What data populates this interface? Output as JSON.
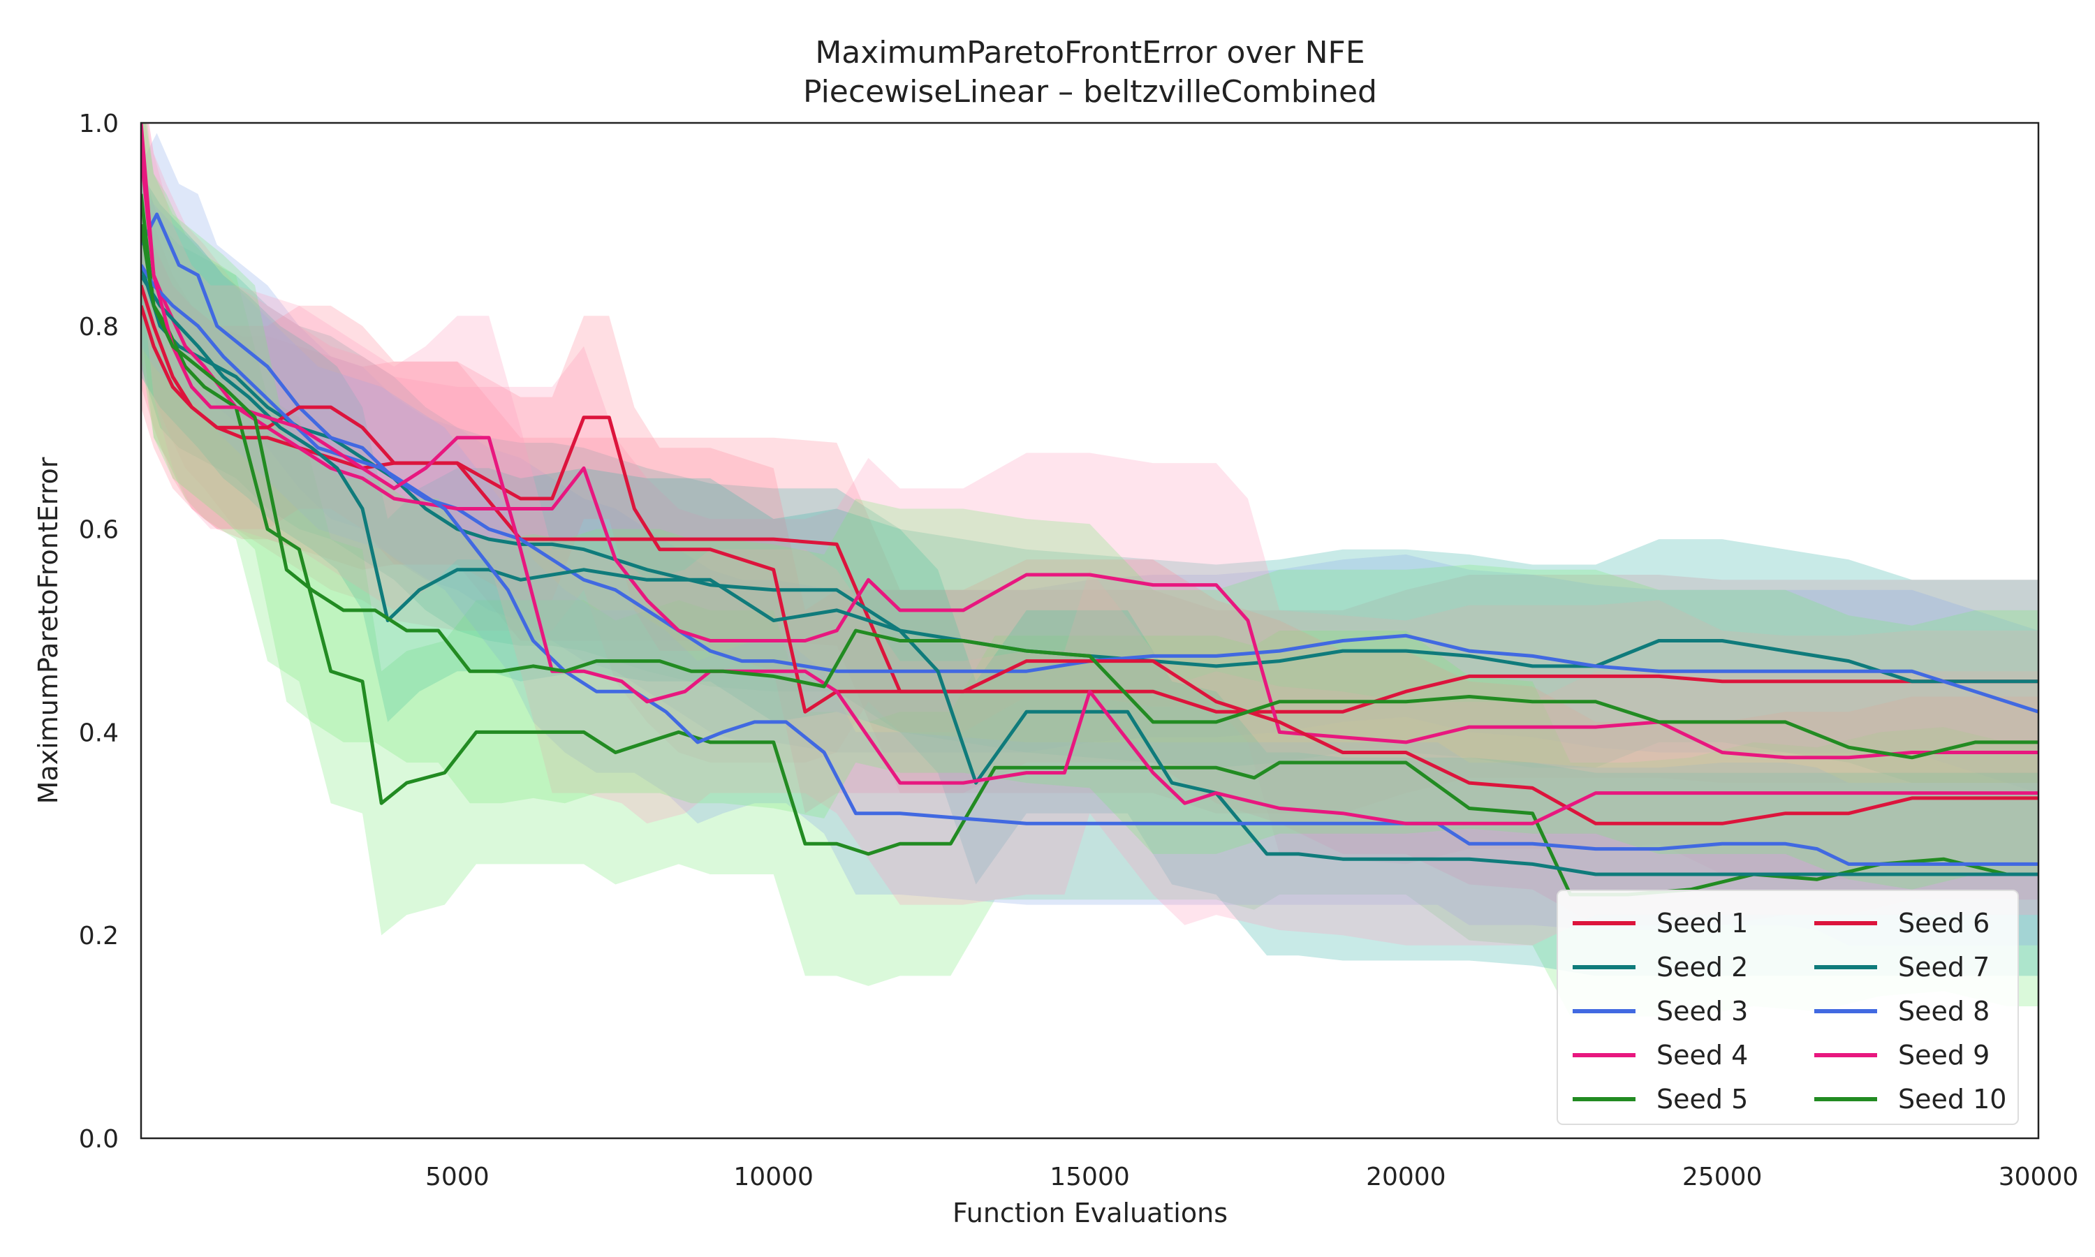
{
  "chart_data": {
    "type": "line",
    "title": "MaximumParetoFrontError over NFE",
    "subtitle": "PiecewiseLinear – beltzvilleCombined",
    "xlabel": "Function Evaluations",
    "ylabel": "MaximumParetoFrontError",
    "xlim": [
      0,
      30000
    ],
    "ylim": [
      0,
      1.0
    ],
    "xticks": [
      5000,
      10000,
      15000,
      20000,
      25000,
      30000
    ],
    "xtick_labels": [
      "5000",
      "10000",
      "15000",
      "20000",
      "25000",
      "30000"
    ],
    "yticks": [
      0.0,
      0.2,
      0.4,
      0.6,
      0.8,
      1.0
    ],
    "ytick_labels": [
      "0.0",
      "0.2",
      "0.4",
      "0.6",
      "0.8",
      "1.0"
    ],
    "grid": false,
    "legend_position": "lower-right",
    "legend_columns": 2,
    "series": [
      {
        "name": "Seed 1",
        "color": "#DC143C",
        "x": [
          0,
          200,
          500,
          800,
          1200,
          1600,
          2000,
          2500,
          3000,
          3500,
          4000,
          5000,
          6000,
          7000,
          8000,
          9000,
          10000,
          11000,
          12000,
          13000,
          14000,
          15000,
          16000,
          17000,
          18000,
          19000,
          20000,
          21000,
          22000,
          23000,
          24000,
          25000,
          26000,
          27000,
          28000,
          29000,
          30000
        ],
        "y": [
          0.84,
          0.8,
          0.75,
          0.72,
          0.7,
          0.69,
          0.69,
          0.68,
          0.67,
          0.66,
          0.665,
          0.665,
          0.59,
          0.59,
          0.59,
          0.59,
          0.59,
          0.585,
          0.44,
          0.44,
          0.44,
          0.44,
          0.44,
          0.42,
          0.42,
          0.42,
          0.44,
          0.455,
          0.455,
          0.455,
          0.455,
          0.45,
          0.45,
          0.45,
          0.45,
          0.45,
          0.45
        ]
      },
      {
        "name": "Seed 2",
        "color": "#0F7B7B",
        "x": [
          0,
          300,
          600,
          900,
          1200,
          1500,
          2000,
          2500,
          3000,
          3500,
          4000,
          4500,
          5000,
          5500,
          6000,
          6500,
          7000,
          7500,
          8000,
          9000,
          10000,
          11000,
          12000,
          13000,
          14000,
          15000,
          16000,
          17000,
          18000,
          19000,
          20000,
          21000,
          22000,
          23000,
          24000,
          25000,
          26000,
          27000,
          28000,
          29000,
          30000
        ],
        "y": [
          0.86,
          0.8,
          0.78,
          0.77,
          0.76,
          0.75,
          0.72,
          0.7,
          0.69,
          0.67,
          0.65,
          0.62,
          0.6,
          0.59,
          0.585,
          0.585,
          0.58,
          0.57,
          0.56,
          0.545,
          0.54,
          0.54,
          0.5,
          0.49,
          0.48,
          0.475,
          0.47,
          0.465,
          0.47,
          0.48,
          0.48,
          0.475,
          0.465,
          0.465,
          0.49,
          0.49,
          0.48,
          0.47,
          0.45,
          0.45,
          0.45
        ]
      },
      {
        "name": "Seed 3",
        "color": "#4169E1",
        "x": [
          0,
          250,
          600,
          900,
          1200,
          1600,
          2000,
          2500,
          3000,
          3500,
          4000,
          4500,
          5000,
          5500,
          6000,
          6500,
          7000,
          7500,
          8000,
          8500,
          9000,
          9500,
          10000,
          11000,
          12000,
          13000,
          14000,
          15000,
          16000,
          17000,
          18000,
          19000,
          20000,
          21000,
          22000,
          23000,
          24000,
          25000,
          26000,
          27000,
          28000,
          29000,
          30000
        ],
        "y": [
          0.88,
          0.91,
          0.86,
          0.85,
          0.8,
          0.78,
          0.76,
          0.72,
          0.69,
          0.68,
          0.65,
          0.63,
          0.62,
          0.6,
          0.59,
          0.57,
          0.55,
          0.54,
          0.52,
          0.5,
          0.48,
          0.47,
          0.47,
          0.46,
          0.46,
          0.46,
          0.46,
          0.47,
          0.475,
          0.475,
          0.48,
          0.49,
          0.495,
          0.48,
          0.475,
          0.465,
          0.46,
          0.46,
          0.46,
          0.46,
          0.46,
          0.44,
          0.42
        ]
      },
      {
        "name": "Seed 4",
        "color": "#E8177F",
        "x": [
          0,
          200,
          400,
          700,
          1000,
          1500,
          2000,
          2500,
          3000,
          3500,
          4000,
          4500,
          5000,
          5500,
          6000,
          6500,
          7000,
          7500,
          8000,
          8500,
          9000,
          9500,
          10000,
          10500,
          11000,
          11500,
          12000,
          13000,
          14000,
          15000,
          16000,
          17000,
          17500,
          18000,
          19000,
          20000,
          21000,
          22000,
          23000,
          24000,
          25000,
          26000,
          27000,
          28000,
          29000,
          30000
        ],
        "y": [
          1.0,
          0.85,
          0.82,
          0.78,
          0.76,
          0.72,
          0.7,
          0.68,
          0.66,
          0.65,
          0.63,
          0.625,
          0.62,
          0.62,
          0.62,
          0.62,
          0.66,
          0.57,
          0.53,
          0.5,
          0.49,
          0.49,
          0.49,
          0.49,
          0.5,
          0.55,
          0.52,
          0.52,
          0.555,
          0.555,
          0.545,
          0.545,
          0.51,
          0.4,
          0.395,
          0.39,
          0.405,
          0.405,
          0.405,
          0.41,
          0.38,
          0.375,
          0.375,
          0.38,
          0.38,
          0.38
        ]
      },
      {
        "name": "Seed 5",
        "color": "#228B22",
        "x": [
          0,
          200,
          400,
          700,
          1000,
          1500,
          2000,
          2500,
          3000,
          3500,
          3800,
          4200,
          4800,
          5300,
          6000,
          6500,
          7000,
          7500,
          8000,
          8500,
          9000,
          9500,
          10000,
          10500,
          11000,
          11500,
          12000,
          12800,
          13500,
          14500,
          15500,
          16000,
          17000,
          17600,
          18000,
          19000,
          20000,
          21000,
          22000,
          22600,
          23500,
          24500,
          25500,
          26500,
          27500,
          28500,
          29500,
          30000
        ],
        "y": [
          0.93,
          0.82,
          0.8,
          0.76,
          0.74,
          0.72,
          0.6,
          0.58,
          0.46,
          0.45,
          0.33,
          0.35,
          0.36,
          0.4,
          0.4,
          0.4,
          0.4,
          0.38,
          0.39,
          0.4,
          0.39,
          0.39,
          0.39,
          0.29,
          0.29,
          0.28,
          0.29,
          0.29,
          0.365,
          0.365,
          0.365,
          0.365,
          0.365,
          0.355,
          0.37,
          0.37,
          0.37,
          0.325,
          0.32,
          0.24,
          0.24,
          0.245,
          0.26,
          0.255,
          0.27,
          0.275,
          0.26,
          0.26
        ]
      },
      {
        "name": "Seed 6",
        "color": "#DC143C",
        "x": [
          0,
          200,
          500,
          800,
          1200,
          1600,
          2000,
          2500,
          3000,
          3500,
          4000,
          5000,
          6000,
          6500,
          7000,
          7400,
          7800,
          8200,
          9000,
          10000,
          10500,
          11000,
          12000,
          13000,
          14000,
          15000,
          16000,
          17000,
          18000,
          19000,
          20000,
          21000,
          22000,
          23000,
          24000,
          25000,
          26000,
          27000,
          28000,
          29000,
          30000
        ],
        "y": [
          0.82,
          0.78,
          0.74,
          0.72,
          0.7,
          0.7,
          0.7,
          0.72,
          0.72,
          0.7,
          0.665,
          0.665,
          0.63,
          0.63,
          0.71,
          0.71,
          0.62,
          0.58,
          0.58,
          0.56,
          0.42,
          0.44,
          0.44,
          0.44,
          0.47,
          0.47,
          0.47,
          0.43,
          0.41,
          0.38,
          0.38,
          0.35,
          0.345,
          0.31,
          0.31,
          0.31,
          0.32,
          0.32,
          0.335,
          0.335,
          0.335
        ]
      },
      {
        "name": "Seed 7",
        "color": "#0F7B7B",
        "x": [
          0,
          300,
          600,
          900,
          1300,
          1700,
          2200,
          2700,
          3100,
          3500,
          3900,
          4400,
          5000,
          5500,
          6000,
          7000,
          8000,
          9000,
          10000,
          11000,
          12000,
          12600,
          13200,
          14000,
          15000,
          15600,
          16300,
          17000,
          17800,
          18300,
          19000,
          20000,
          21000,
          22000,
          23000,
          24000,
          25000,
          26000,
          27000,
          28000,
          29000,
          30000
        ],
        "y": [
          0.85,
          0.82,
          0.8,
          0.78,
          0.75,
          0.73,
          0.7,
          0.68,
          0.66,
          0.62,
          0.51,
          0.54,
          0.56,
          0.56,
          0.55,
          0.56,
          0.55,
          0.55,
          0.51,
          0.52,
          0.5,
          0.46,
          0.35,
          0.42,
          0.42,
          0.42,
          0.35,
          0.34,
          0.28,
          0.28,
          0.275,
          0.275,
          0.275,
          0.27,
          0.26,
          0.26,
          0.26,
          0.26,
          0.26,
          0.26,
          0.26,
          0.26
        ]
      },
      {
        "name": "Seed 8",
        "color": "#4169E1",
        "x": [
          0,
          200,
          500,
          900,
          1300,
          1800,
          2300,
          2800,
          3300,
          3800,
          4300,
          4800,
          5300,
          5800,
          6200,
          6700,
          7200,
          7800,
          8300,
          8800,
          9200,
          9700,
          10200,
          10800,
          11300,
          12000,
          13000,
          14000,
          15000,
          16000,
          17000,
          18000,
          19000,
          20000,
          20500,
          21000,
          22000,
          23000,
          24000,
          25000,
          26000,
          26500,
          27000,
          28000,
          29000,
          30000
        ],
        "y": [
          0.86,
          0.84,
          0.82,
          0.8,
          0.77,
          0.74,
          0.71,
          0.68,
          0.67,
          0.66,
          0.64,
          0.62,
          0.58,
          0.54,
          0.49,
          0.46,
          0.44,
          0.44,
          0.42,
          0.39,
          0.4,
          0.41,
          0.41,
          0.38,
          0.32,
          0.32,
          0.315,
          0.31,
          0.31,
          0.31,
          0.31,
          0.31,
          0.31,
          0.31,
          0.31,
          0.29,
          0.29,
          0.285,
          0.285,
          0.29,
          0.29,
          0.285,
          0.27,
          0.27,
          0.27,
          0.27
        ]
      },
      {
        "name": "Seed 9",
        "color": "#E8177F",
        "x": [
          0,
          200,
          500,
          800,
          1100,
          1500,
          2000,
          2500,
          3000,
          3500,
          4000,
          4500,
          5000,
          5500,
          6000,
          6500,
          7000,
          7600,
          8000,
          8600,
          9000,
          10000,
          10500,
          11000,
          12000,
          13000,
          14000,
          14600,
          15000,
          16000,
          16500,
          17000,
          18000,
          19000,
          20000,
          21000,
          22000,
          23000,
          24000,
          25000,
          26000,
          27000,
          28000,
          29000,
          30000
        ],
        "y": [
          0.97,
          0.85,
          0.78,
          0.74,
          0.72,
          0.72,
          0.71,
          0.7,
          0.68,
          0.66,
          0.64,
          0.66,
          0.69,
          0.69,
          0.58,
          0.46,
          0.46,
          0.45,
          0.43,
          0.44,
          0.46,
          0.46,
          0.46,
          0.44,
          0.35,
          0.35,
          0.36,
          0.36,
          0.44,
          0.36,
          0.33,
          0.34,
          0.325,
          0.32,
          0.31,
          0.31,
          0.31,
          0.34,
          0.34,
          0.34,
          0.34,
          0.34,
          0.34,
          0.34,
          0.34
        ]
      },
      {
        "name": "Seed 10",
        "color": "#228B22",
        "x": [
          0,
          200,
          500,
          900,
          1300,
          1800,
          2300,
          2700,
          3200,
          3700,
          4200,
          4700,
          5200,
          5700,
          6200,
          6700,
          7200,
          7700,
          8200,
          8700,
          9200,
          10000,
          10800,
          11300,
          12000,
          13000,
          14000,
          15000,
          16000,
          17000,
          18000,
          19000,
          20000,
          21000,
          22000,
          23000,
          24000,
          25000,
          26000,
          27000,
          28000,
          29000,
          30000
        ],
        "y": [
          0.9,
          0.82,
          0.78,
          0.76,
          0.74,
          0.71,
          0.56,
          0.54,
          0.52,
          0.52,
          0.5,
          0.5,
          0.46,
          0.46,
          0.465,
          0.46,
          0.47,
          0.47,
          0.47,
          0.46,
          0.46,
          0.455,
          0.445,
          0.5,
          0.49,
          0.49,
          0.48,
          0.475,
          0.41,
          0.41,
          0.43,
          0.43,
          0.43,
          0.435,
          0.43,
          0.43,
          0.41,
          0.41,
          0.41,
          0.385,
          0.375,
          0.39,
          0.39
        ]
      }
    ]
  }
}
